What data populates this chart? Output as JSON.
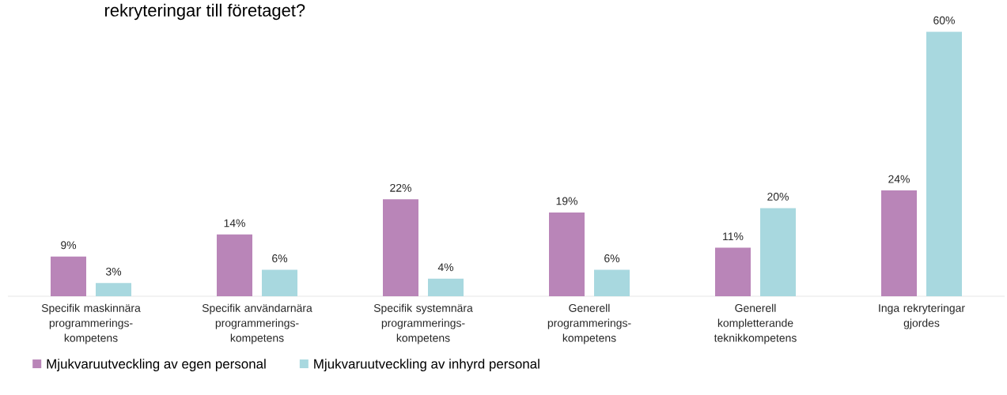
{
  "chart_data": {
    "type": "bar",
    "title": "rekryteringar till företaget?",
    "categories": [
      "Specifik maskinnära programmerings-kompetens",
      "Specifik användarnära programmerings-kompetens",
      "Specifik systemnära programmerings-kompetens",
      "Generell programmerings-kompetens",
      "Generell kompletterande teknikkompetens",
      "Inga rekryteringar gjordes"
    ],
    "series": [
      {
        "name": "Mjukvaruutveckling av egen personal",
        "color": "#b985b8",
        "values": [
          9,
          14,
          22,
          19,
          11,
          24
        ],
        "value_labels": [
          "9%",
          "14%",
          "22%",
          "19%",
          "11%",
          "24%"
        ]
      },
      {
        "name": "Mjukvaruutveckling av inhyrd personal",
        "color": "#a8d8df",
        "values": [
          3,
          6,
          4,
          6,
          20,
          60
        ],
        "value_labels": [
          "3%",
          "6%",
          "4%",
          "6%",
          "20%",
          "60%"
        ]
      }
    ],
    "legend": "bottom left",
    "grid": false
  }
}
